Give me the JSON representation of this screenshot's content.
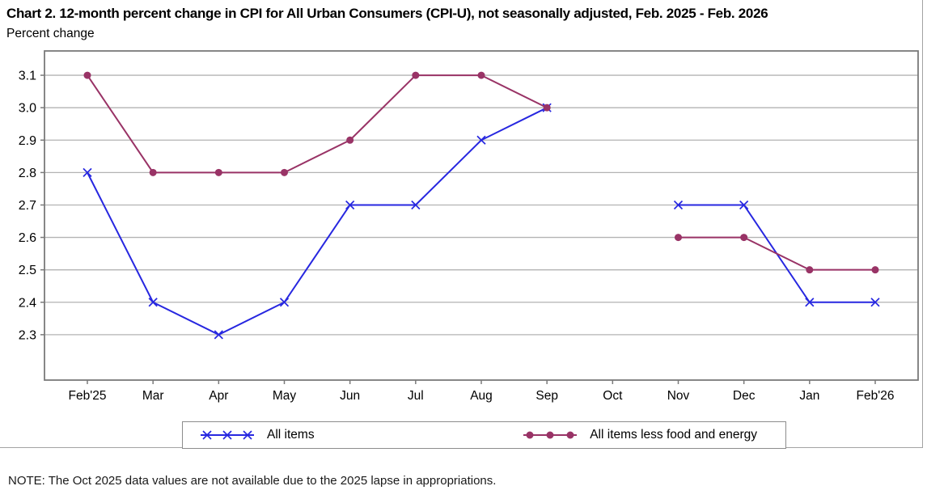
{
  "chart_data": {
    "type": "line",
    "title": "Chart 2. 12-month percent change in CPI for All Urban Consumers (CPI-U), not seasonally adjusted, Feb. 2025 - Feb. 2026",
    "ylabel": "Percent change",
    "categories": [
      "Feb'25",
      "Mar",
      "Apr",
      "May",
      "Jun",
      "Jul",
      "Aug",
      "Sep",
      "Oct",
      "Nov",
      "Dec",
      "Jan",
      "Feb'26"
    ],
    "series": [
      {
        "name": "All items",
        "color": "#2727e0",
        "marker": "x",
        "values": [
          2.8,
          2.4,
          2.3,
          2.4,
          2.7,
          2.7,
          2.9,
          3.0,
          null,
          2.7,
          2.7,
          2.4,
          2.4
        ]
      },
      {
        "name": "All items less food and energy",
        "color": "#993366",
        "marker": "circle",
        "values": [
          3.1,
          2.8,
          2.8,
          2.8,
          2.9,
          3.1,
          3.1,
          3.0,
          null,
          2.6,
          2.6,
          2.5,
          2.5
        ]
      }
    ],
    "yticks": [
      2.3,
      2.4,
      2.5,
      2.6,
      2.7,
      2.8,
      2.9,
      3.0,
      3.1
    ],
    "ylim": [
      2.16,
      3.175
    ],
    "grid": true,
    "grid_color": "#b3b3b3",
    "axis_color": "#7a7a7a",
    "legend_position": "bottom",
    "missing_category": "Oct"
  },
  "note": {
    "text": "NOTE: The Oct 2025 data values are not available due to the 2025 lapse in appropriations."
  }
}
